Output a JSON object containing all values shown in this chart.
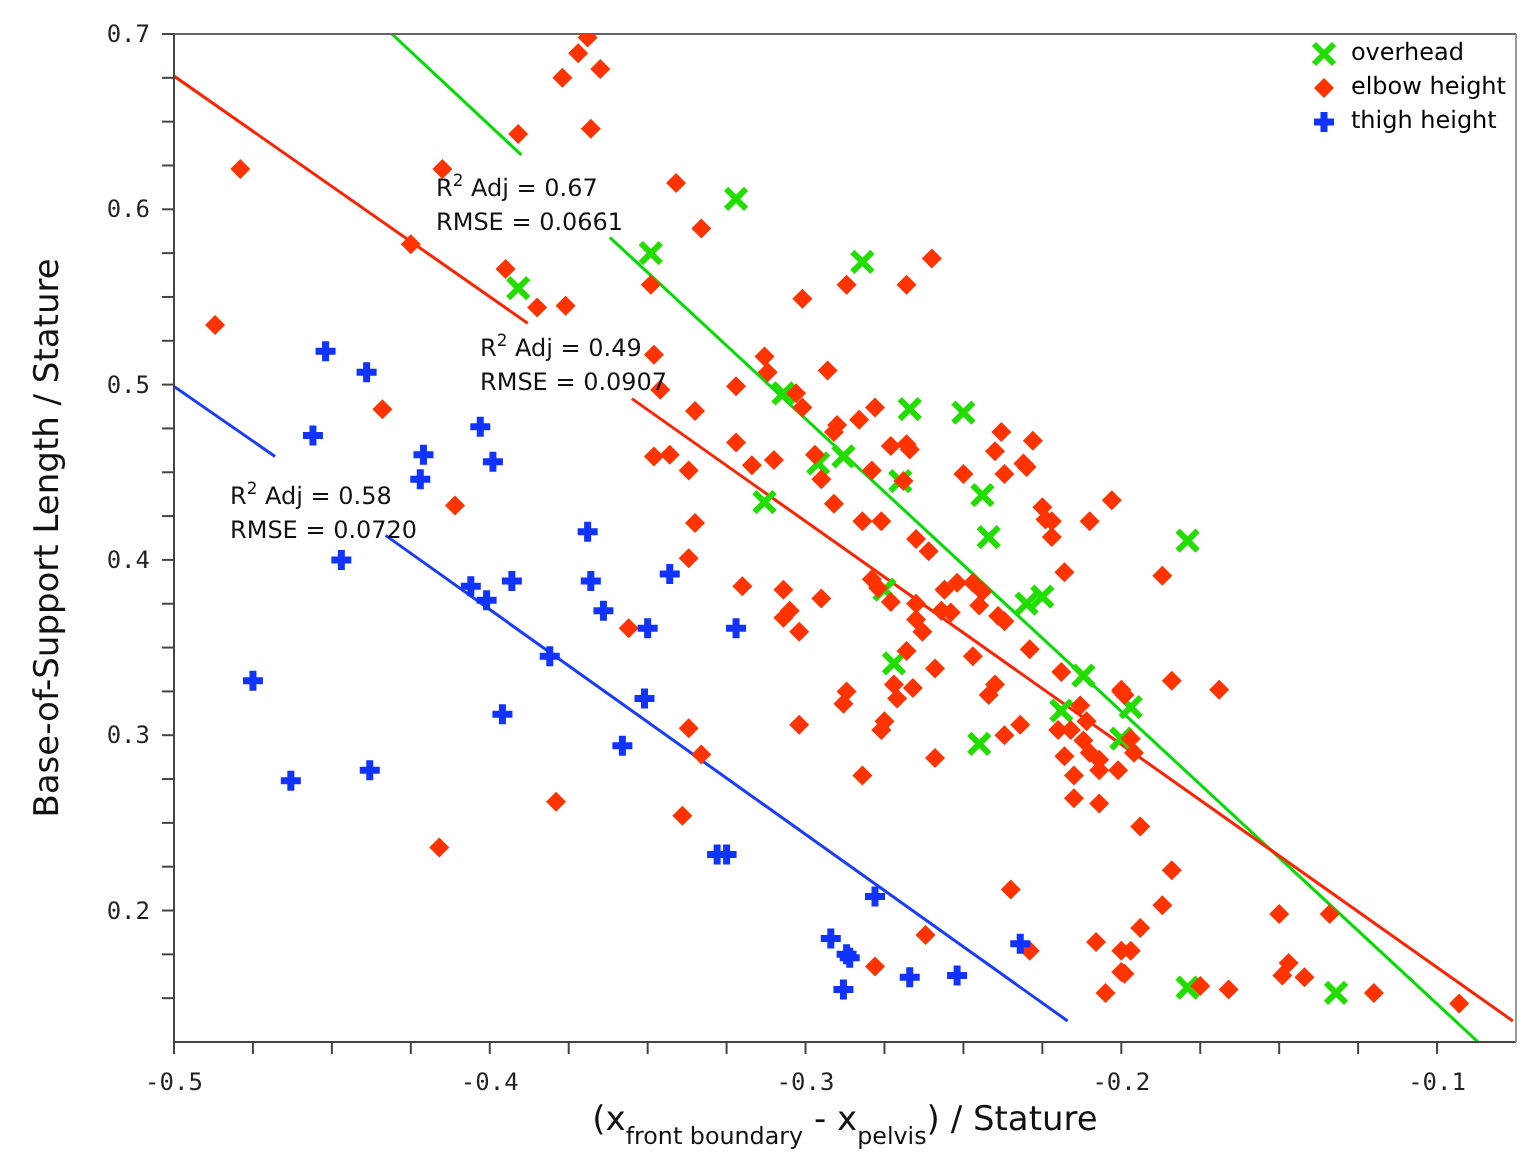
{
  "chart_data": {
    "type": "scatter",
    "xlabel": "(x$_{front boundary}$ - x$_{pelvis}$) / Stature",
    "ylabel": "Base-of-Support Length / Stature",
    "xlim": [
      -0.5,
      -0.075
    ],
    "ylim": [
      0.125,
      0.7
    ],
    "xticks": [
      -0.5,
      {
        "value": -0.475,
        "label": null
      },
      {
        "value": -0.45,
        "label": null
      },
      {
        "value": -0.425,
        "label": null
      },
      -0.4,
      {
        "value": -0.375,
        "label": null
      },
      {
        "value": -0.35,
        "label": null
      },
      {
        "value": -0.325,
        "label": null
      },
      -0.3,
      {
        "value": -0.275,
        "label": null
      },
      {
        "value": -0.25,
        "label": null
      },
      {
        "value": -0.225,
        "label": null
      },
      -0.2,
      {
        "value": -0.175,
        "label": null
      },
      {
        "value": -0.15,
        "label": null
      },
      {
        "value": -0.125,
        "label": null
      },
      -0.1
    ],
    "yticks": [
      {
        "value": 0.15,
        "label": null
      },
      {
        "value": 0.175,
        "label": null
      },
      0.2,
      {
        "value": 0.225,
        "label": null
      },
      {
        "value": 0.25,
        "label": null
      },
      {
        "value": 0.275,
        "label": null
      },
      0.3,
      {
        "value": 0.325,
        "label": null
      },
      {
        "value": 0.35,
        "label": null
      },
      {
        "value": 0.375,
        "label": null
      },
      0.4,
      {
        "value": 0.425,
        "label": null
      },
      {
        "value": 0.45,
        "label": null
      },
      {
        "value": 0.475,
        "label": null
      },
      0.5,
      {
        "value": 0.525,
        "label": null
      },
      {
        "value": 0.55,
        "label": null
      },
      {
        "value": 0.575,
        "label": null
      },
      0.6,
      {
        "value": 0.625,
        "label": null
      },
      {
        "value": 0.65,
        "label": null
      },
      {
        "value": 0.675,
        "label": null
      },
      0.7
    ],
    "legend": "top right",
    "annotations": [
      "R$^{2}$ Adj = 0.67\nRMSE = 0.0661",
      "R$^{2}$ Adj = 0.49\nRMSE = 0.0907",
      "R$^{2}$ Adj = 0.58\nRMSE = 0.0720"
    ],
    "series": [
      {
        "name": "overhead",
        "marker": "cross",
        "color": "#22dd00",
        "x": [
          -0.391,
          -0.349,
          -0.322,
          -0.282,
          -0.307,
          -0.267,
          -0.25,
          -0.288,
          -0.296,
          -0.27,
          -0.244,
          -0.313,
          -0.242,
          -0.275,
          -0.23,
          -0.225,
          -0.272,
          -0.212,
          -0.219,
          -0.245,
          -0.179,
          -0.197,
          -0.2,
          -0.179,
          -0.132
        ],
        "values": [
          0.555,
          0.575,
          0.606,
          0.57,
          0.495,
          0.486,
          0.484,
          0.459,
          0.455,
          0.445,
          0.437,
          0.433,
          0.413,
          0.383,
          0.375,
          0.379,
          0.341,
          0.334,
          0.314,
          0.295,
          0.411,
          0.316,
          0.298,
          0.156,
          0.153
        ]
      },
      {
        "name": "elbow height",
        "marker": "diamond",
        "color": "#ff3300",
        "x": [
          -0.369,
          -0.372,
          -0.365,
          -0.377,
          -0.368,
          -0.391,
          -0.479,
          -0.415,
          -0.425,
          -0.395,
          -0.385,
          -0.376,
          -0.349,
          -0.487,
          -0.434,
          -0.411,
          -0.348,
          -0.348,
          -0.341,
          -0.333,
          -0.301,
          -0.287,
          -0.268,
          -0.26,
          -0.346,
          -0.335,
          -0.322,
          -0.313,
          -0.312,
          -0.303,
          -0.301,
          -0.293,
          -0.278,
          -0.283,
          -0.291,
          -0.29,
          -0.322,
          -0.343,
          -0.337,
          -0.317,
          -0.31,
          -0.297,
          -0.295,
          -0.279,
          -0.273,
          -0.268,
          -0.267,
          -0.25,
          -0.24,
          -0.238,
          -0.237,
          -0.231,
          -0.23,
          -0.228,
          -0.225,
          -0.222,
          -0.21,
          -0.203,
          -0.291,
          -0.335,
          -0.282,
          -0.276,
          -0.269,
          -0.337,
          -0.32,
          -0.307,
          -0.295,
          -0.305,
          -0.307,
          -0.302,
          -0.265,
          -0.261,
          -0.279,
          -0.277,
          -0.273,
          -0.265,
          -0.263,
          -0.265,
          -0.256,
          -0.252,
          -0.247,
          -0.244,
          -0.245,
          -0.257,
          -0.254,
          -0.239,
          -0.237,
          -0.229,
          -0.247,
          -0.268,
          -0.259,
          -0.24,
          -0.242,
          -0.272,
          -0.266,
          -0.271,
          -0.287,
          -0.288,
          -0.275,
          -0.276,
          -0.302,
          -0.337,
          -0.333,
          -0.259,
          -0.282,
          -0.339,
          -0.237,
          -0.232,
          -0.224,
          -0.222,
          -0.218,
          -0.219,
          -0.2,
          -0.22,
          -0.216,
          -0.211,
          -0.212,
          -0.21,
          -0.207,
          -0.207,
          -0.201,
          -0.218,
          -0.215,
          -0.215,
          -0.207,
          -0.235,
          -0.262,
          -0.278,
          -0.229,
          -0.208,
          -0.2,
          -0.2,
          -0.205,
          -0.213,
          -0.187,
          -0.184,
          -0.169,
          -0.2,
          -0.199,
          -0.197,
          -0.196,
          -0.194,
          -0.184,
          -0.187,
          -0.194,
          -0.197,
          -0.199,
          -0.175,
          -0.166,
          -0.15,
          -0.134,
          -0.147,
          -0.149,
          -0.142,
          -0.12,
          -0.093,
          -0.356,
          -0.379,
          -0.416
        ],
        "values": [
          0.698,
          0.689,
          0.68,
          0.675,
          0.646,
          0.643,
          0.623,
          0.623,
          0.58,
          0.566,
          0.544,
          0.545,
          0.557,
          0.534,
          0.486,
          0.431,
          0.517,
          0.459,
          0.615,
          0.589,
          0.549,
          0.557,
          0.557,
          0.572,
          0.497,
          0.485,
          0.499,
          0.516,
          0.507,
          0.495,
          0.487,
          0.508,
          0.487,
          0.48,
          0.473,
          0.477,
          0.467,
          0.46,
          0.451,
          0.454,
          0.457,
          0.46,
          0.446,
          0.451,
          0.465,
          0.466,
          0.463,
          0.449,
          0.462,
          0.473,
          0.449,
          0.455,
          0.453,
          0.468,
          0.43,
          0.422,
          0.422,
          0.434,
          0.432,
          0.421,
          0.422,
          0.422,
          0.445,
          0.401,
          0.385,
          0.383,
          0.378,
          0.371,
          0.367,
          0.359,
          0.412,
          0.405,
          0.389,
          0.384,
          0.376,
          0.375,
          0.359,
          0.366,
          0.383,
          0.387,
          0.387,
          0.382,
          0.374,
          0.371,
          0.37,
          0.368,
          0.365,
          0.349,
          0.345,
          0.348,
          0.338,
          0.329,
          0.323,
          0.329,
          0.327,
          0.321,
          0.325,
          0.318,
          0.308,
          0.303,
          0.306,
          0.304,
          0.289,
          0.287,
          0.277,
          0.254,
          0.3,
          0.306,
          0.423,
          0.413,
          0.393,
          0.336,
          0.326,
          0.303,
          0.303,
          0.308,
          0.297,
          0.29,
          0.286,
          0.28,
          0.28,
          0.288,
          0.277,
          0.264,
          0.261,
          0.212,
          0.186,
          0.168,
          0.177,
          0.182,
          0.177,
          0.165,
          0.153,
          0.317,
          0.391,
          0.331,
          0.326,
          0.325,
          0.323,
          0.298,
          0.29,
          0.248,
          0.223,
          0.203,
          0.19,
          0.177,
          0.164,
          0.157,
          0.155,
          0.198,
          0.198,
          0.17,
          0.163,
          0.162,
          0.153,
          0.147,
          0.361,
          0.262,
          0.236
        ]
      },
      {
        "name": "thigh height",
        "marker": "plus",
        "color": "#1133ff",
        "x": [
          -0.452,
          -0.439,
          -0.456,
          -0.421,
          -0.422,
          -0.403,
          -0.399,
          -0.369,
          -0.447,
          -0.475,
          -0.463,
          -0.438,
          -0.406,
          -0.401,
          -0.393,
          -0.381,
          -0.396,
          -0.368,
          -0.364,
          -0.35,
          -0.351,
          -0.358,
          -0.343,
          -0.322,
          -0.328,
          -0.325,
          -0.278,
          -0.292,
          -0.287,
          -0.286,
          -0.288,
          -0.267,
          -0.252,
          -0.232
        ],
        "values": [
          0.519,
          0.507,
          0.471,
          0.46,
          0.446,
          0.476,
          0.456,
          0.416,
          0.4,
          0.331,
          0.274,
          0.28,
          0.385,
          0.377,
          0.388,
          0.345,
          0.312,
          0.388,
          0.371,
          0.361,
          0.321,
          0.294,
          0.392,
          0.361,
          0.232,
          0.232,
          0.208,
          0.184,
          0.175,
          0.173,
          0.155,
          0.162,
          0.163,
          0.181
        ]
      },
      {
        "type": "line",
        "color": "#00dd00",
        "x": [
          -0.431,
          -0.39,
          -0.376,
          -0.362,
          -0.087
        ],
        "values": [
          0.7,
          0.631,
          null,
          0.584,
          0.125
        ]
      },
      {
        "type": "line",
        "color": "#ff2200",
        "x": [
          -0.5,
          -0.388,
          -0.371,
          -0.355,
          -0.076
        ],
        "values": [
          0.676,
          0.535,
          null,
          0.492,
          0.137
        ]
      },
      {
        "type": "line",
        "color": "#1a3cff",
        "x": [
          -0.5,
          -0.468,
          -0.45,
          -0.433,
          -0.217
        ],
        "values": [
          0.499,
          0.459,
          null,
          0.414,
          0.137
        ]
      }
    ]
  }
}
